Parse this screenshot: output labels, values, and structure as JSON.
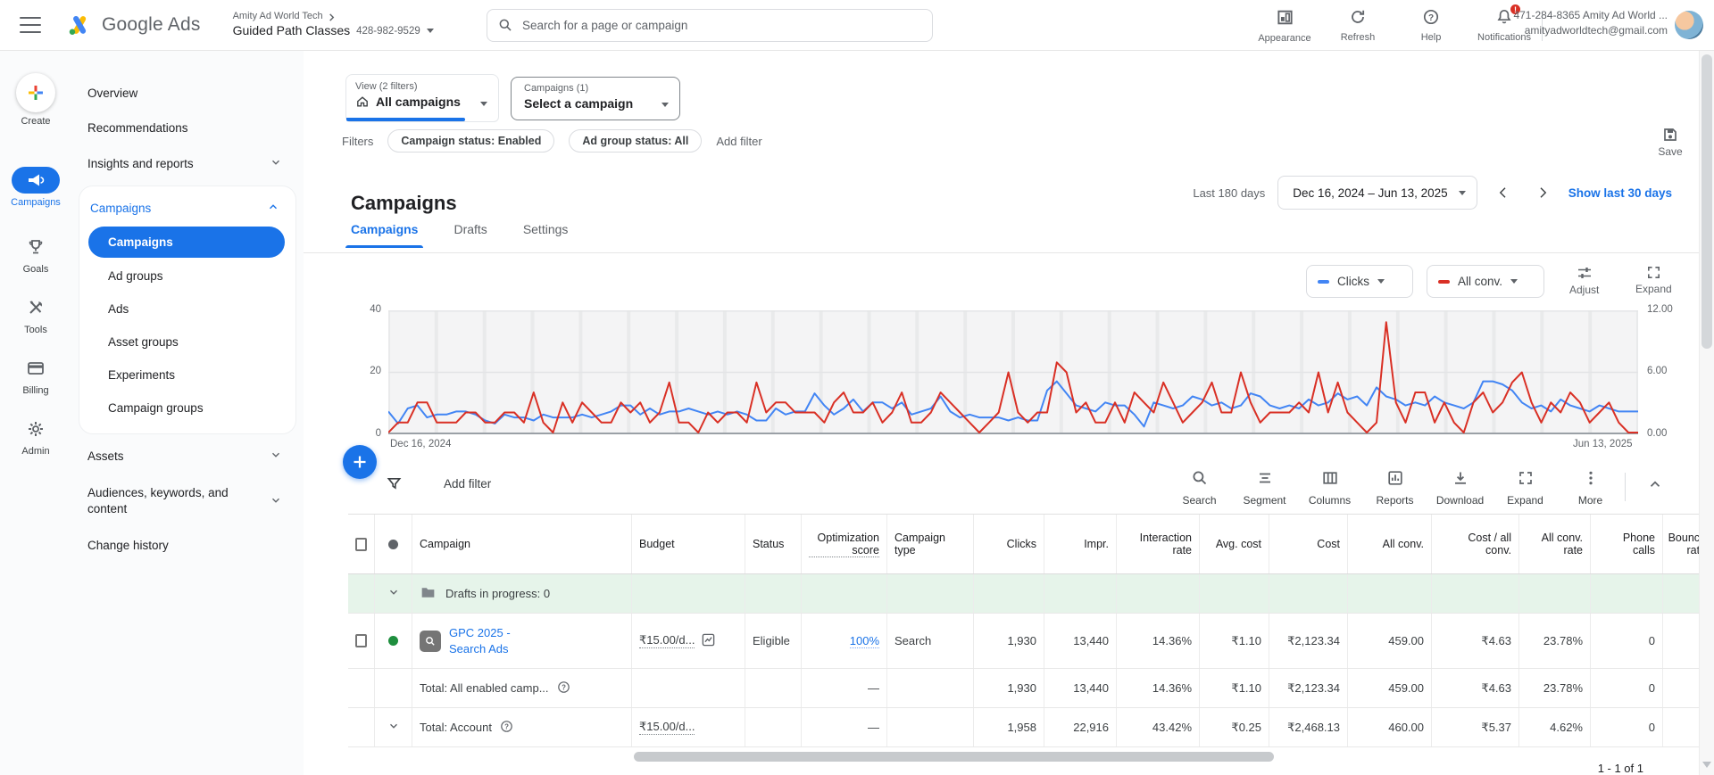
{
  "topbar": {
    "product": "Google Ads",
    "breadcrumb_top": "Amity Ad World Tech",
    "account_name": "Guided Path Classes",
    "account_id": "428-982-9529",
    "search_placeholder": "Search for a page or campaign",
    "actions": [
      "Appearance",
      "Refresh",
      "Help",
      "Notifications"
    ],
    "notification_badge": "!",
    "user_line1": "471-284-8365 Amity Ad World ...",
    "user_line2": "amityadworldtech@gmail.com"
  },
  "rail": {
    "items": [
      "Create",
      "Campaigns",
      "Goals",
      "Tools",
      "Billing",
      "Admin"
    ],
    "active": "Campaigns"
  },
  "subnav": {
    "top_items": [
      "Overview",
      "Recommendations"
    ],
    "insights": "Insights and reports",
    "campaigns_group": "Campaigns",
    "campaign_children": [
      "Campaigns",
      "Ad groups",
      "Ads",
      "Asset groups",
      "Experiments",
      "Campaign groups"
    ],
    "selected_child": "Campaigns",
    "assets": "Assets",
    "audiences": "Audiences, keywords, and content",
    "change_history": "Change history"
  },
  "view_selector": {
    "label": "View (2 filters)",
    "value": "All campaigns"
  },
  "campaign_selector": {
    "label": "Campaigns (1)",
    "value": "Select a campaign"
  },
  "save_label": "Save",
  "filters": {
    "label": "Filters",
    "chips": [
      "Campaign status: Enabled",
      "Ad group status: All"
    ],
    "add_label": "Add filter"
  },
  "header": {
    "title": "Campaigns",
    "range_label": "Last 180 days",
    "range_value": "Dec 16, 2024 – Jun 13, 2025",
    "quick_link": "Show last 30 days"
  },
  "tabs": [
    {
      "label": "Campaigns",
      "active": true
    },
    {
      "label": "Drafts",
      "active": false
    },
    {
      "label": "Settings",
      "active": false
    }
  ],
  "chart_controls": {
    "metric1": "Clicks",
    "metric2": "All conv.",
    "adjust": "Adjust",
    "expand": "Expand"
  },
  "chart_data": {
    "type": "line",
    "title": "",
    "x_start_label": "Dec 16, 2024",
    "x_end_label": "Jun 13, 2025",
    "left_axis_ticks": [
      "40",
      "20",
      "0"
    ],
    "right_axis_ticks": [
      "12.00",
      "6.00",
      "0.00"
    ],
    "left_axis_range": [
      0,
      40
    ],
    "right_axis_range": [
      0,
      12
    ],
    "grid": true,
    "legend_position": "top-right-controls",
    "series": [
      {
        "name": "Clicks",
        "axis": "left",
        "color": "#4285f4",
        "values": [
          7,
          3,
          8,
          9,
          5,
          6,
          6,
          7,
          7,
          6,
          4,
          3,
          6,
          5,
          5,
          4,
          6,
          5,
          5,
          5,
          6,
          5,
          6,
          7,
          9,
          9,
          6,
          8,
          6,
          7,
          7,
          8,
          7,
          6,
          7,
          6,
          7,
          6,
          4,
          4,
          8,
          6,
          7,
          7,
          13,
          9,
          6,
          8,
          11,
          7,
          10,
          10,
          8,
          10,
          6,
          7,
          8,
          12,
          7,
          5,
          6,
          5,
          5,
          5,
          4,
          5,
          4,
          4,
          14,
          17,
          13,
          9,
          8,
          7,
          10,
          9,
          9,
          6,
          2,
          10,
          9,
          8,
          9,
          12,
          11,
          9,
          10,
          8,
          9,
          13,
          12,
          9,
          8,
          9,
          8,
          11,
          9,
          10,
          13,
          11,
          12,
          9,
          15,
          12,
          11,
          9,
          10,
          9,
          12,
          10,
          9,
          8,
          10,
          17,
          17,
          16,
          14,
          10,
          8,
          9,
          7,
          11,
          9,
          8,
          7,
          9,
          8,
          7,
          7,
          7
        ]
      },
      {
        "name": "All conv.",
        "axis": "right",
        "color": "#d93025",
        "values": [
          0,
          1,
          1,
          3,
          3,
          1,
          1,
          1,
          2,
          2,
          1,
          1,
          2,
          2,
          1,
          4,
          1,
          0,
          3,
          1,
          3,
          2,
          1,
          1,
          3,
          2,
          3,
          1,
          2,
          5,
          1,
          1,
          0,
          2,
          1,
          2,
          2,
          1,
          5,
          2,
          3,
          3,
          2,
          2,
          2,
          1,
          3,
          4,
          2,
          2,
          3,
          1,
          2,
          4,
          1,
          1,
          2,
          4,
          3,
          2,
          1,
          0,
          1,
          2,
          6,
          2,
          1,
          2,
          2,
          7,
          6,
          2,
          3,
          1,
          1,
          3,
          1,
          4,
          3,
          2,
          5,
          3,
          1,
          2,
          3,
          5,
          2,
          2,
          6,
          3,
          1,
          2,
          2,
          2,
          3,
          2,
          6,
          2,
          5,
          2,
          1,
          0,
          1,
          11,
          3,
          1,
          4,
          4,
          1,
          3,
          1,
          0,
          3,
          4,
          2,
          3,
          5,
          6,
          3,
          1,
          3,
          2,
          4,
          3,
          1,
          2,
          3,
          1,
          0,
          0
        ]
      }
    ]
  },
  "toolbar": {
    "add_filter": "Add filter",
    "tools": [
      "Search",
      "Segment",
      "Columns",
      "Reports",
      "Download",
      "Expand",
      "More"
    ]
  },
  "table": {
    "columns": [
      "",
      "",
      "Campaign",
      "Budget",
      "Status",
      "Optimization score",
      "Campaign type",
      "Clicks",
      "Impr.",
      "Interaction rate",
      "Avg. cost",
      "Cost",
      "All conv.",
      "Cost / all conv.",
      "All conv. rate",
      "Phone calls",
      "Bounce rate"
    ],
    "drafts_row_label": "Drafts in progress: 0",
    "rows": [
      {
        "kind": "campaign",
        "name": "GPC 2025 - Search Ads",
        "cells": [
          "₹15.00/d...",
          "Eligible",
          "100%",
          "Search",
          "1,930",
          "13,440",
          "14.36%",
          "₹1.10",
          "₹2,123.34",
          "459.00",
          "₹4.63",
          "23.78%",
          "0",
          ""
        ]
      },
      {
        "kind": "total",
        "label": "Total: All enabled camp...",
        "cells": [
          "",
          "",
          "—",
          "",
          "1,930",
          "13,440",
          "14.36%",
          "₹1.10",
          "₹2,123.34",
          "459.00",
          "₹4.63",
          "23.78%",
          "0",
          ""
        ]
      },
      {
        "kind": "total_account",
        "label": "Total: Account",
        "cells": [
          "₹15.00/d...",
          "",
          "—",
          "",
          "1,958",
          "22,916",
          "43.42%",
          "₹0.25",
          "₹2,468.13",
          "460.00",
          "₹5.37",
          "4.62%",
          "0",
          ""
        ]
      }
    ],
    "pagination": "1 - 1 of 1"
  },
  "colors": {
    "accent": "#1a73e8",
    "clicks_line": "#4285f4",
    "conv_line": "#d93025",
    "enabled_dot": "#1e8e3e",
    "drafts_row_bg": "#e6f4ea",
    "badge_red": "#d93025"
  }
}
